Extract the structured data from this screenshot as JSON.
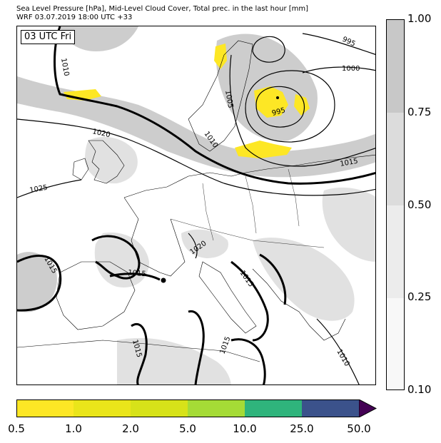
{
  "header": {
    "title_line1": "Sea Level Pressure [hPa], Mid-Level Cloud Cover, Total prec. in the last hour [mm]",
    "title_line2": "WRF 03.07.2019 18:00 UTC +33"
  },
  "map": {
    "time_label": "03 UTC Fri",
    "isobar_labels": [
      "1010",
      "995",
      "1000",
      "1005",
      "995",
      "1020",
      "1010",
      "1015",
      "1025",
      "1020",
      "1015",
      "1015",
      "1015",
      "1015",
      "1015",
      "1010"
    ]
  },
  "cloud_colorbar": {
    "ticks": [
      "1.00",
      "0.75",
      "0.50",
      "0.25",
      "0.10"
    ],
    "colors": [
      "#c8c8c8",
      "#dcdcdc",
      "#ececec",
      "#f8f8f8"
    ]
  },
  "precip_colorbar": {
    "ticks": [
      "0.5",
      "1.0",
      "2.0",
      "5.0",
      "10.0",
      "25.0",
      "50.0"
    ],
    "colors": [
      "#fde725",
      "#eae51a",
      "#d7e219",
      "#a5db36",
      "#2fb47c",
      "#3b528b",
      "#440154"
    ]
  }
}
